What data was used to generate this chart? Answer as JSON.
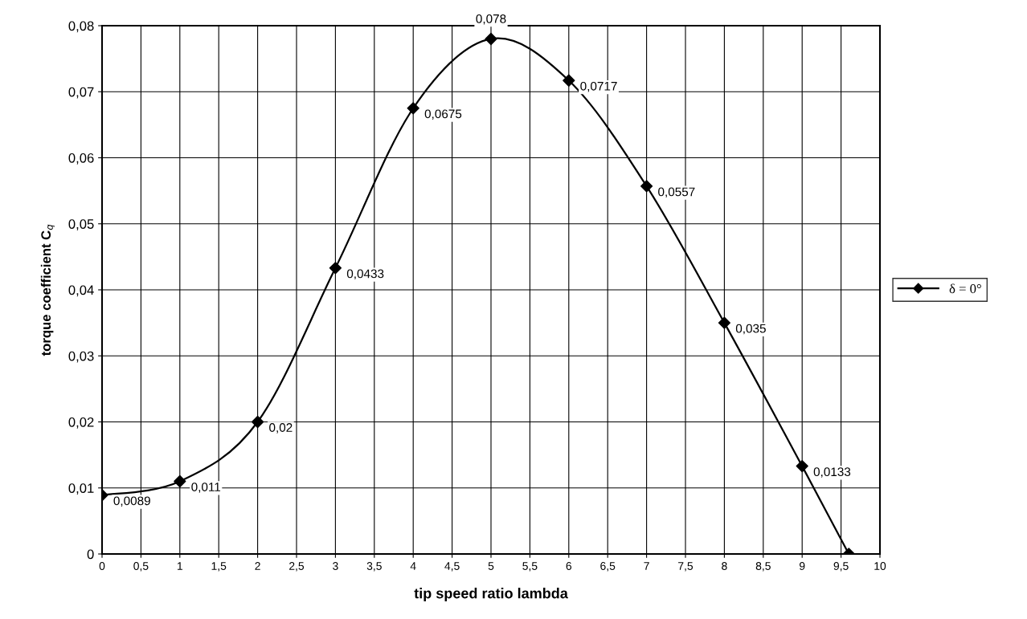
{
  "chart_data": {
    "type": "line",
    "xlabel": "tip speed ratio lambda",
    "ylabel": "torque coefficient C$_{q}$",
    "x": [
      0,
      1,
      2,
      3,
      4,
      5,
      6,
      7,
      8,
      9,
      9.6
    ],
    "series": [
      {
        "name": "δ = 0°",
        "color": "#000000",
        "values": [
          0.0089,
          0.011,
          0.02,
          0.0433,
          0.0675,
          0.078,
          0.0717,
          0.0557,
          0.035,
          0.0133,
          0
        ],
        "value_labels": [
          "0,0089",
          "0,011",
          "0,02",
          "0,0433",
          "0,0675",
          "0,078",
          "0,0717",
          "0,0557",
          "0,035",
          "0,0133",
          null
        ]
      }
    ],
    "xlim": [
      0,
      10
    ],
    "xticks": [
      0,
      {
        "value": 0.5,
        "label": "0,5"
      },
      1,
      {
        "value": 1.5,
        "label": "1,5"
      },
      2,
      {
        "value": 2.5,
        "label": "2,5"
      },
      3,
      {
        "value": 3.5,
        "label": "3,5"
      },
      4,
      {
        "value": 4.5,
        "label": "4,5"
      },
      5,
      {
        "value": 5.5,
        "label": "5,5"
      },
      6,
      {
        "value": 6.5,
        "label": "6,5"
      },
      7,
      {
        "value": 7.5,
        "label": "7,5"
      },
      8,
      {
        "value": 8.5,
        "label": "8,5"
      },
      9,
      {
        "value": 9.5,
        "label": "9,5"
      },
      10
    ],
    "ylim": [
      0,
      0.08
    ],
    "yticks": [
      0,
      {
        "value": 0.01,
        "label": "0,01"
      },
      {
        "value": 0.02,
        "label": "0,02"
      },
      {
        "value": 0.03,
        "label": "0,03"
      },
      {
        "value": 0.04,
        "label": "0,04"
      },
      {
        "value": 0.05,
        "label": "0,05"
      },
      {
        "value": 0.06,
        "label": "0,06"
      },
      {
        "value": 0.07,
        "label": "0,07"
      },
      {
        "value": 0.08,
        "label": "0,08"
      }
    ],
    "grid": true,
    "legend": "right",
    "marker": "diamond",
    "line_style": "solid"
  }
}
